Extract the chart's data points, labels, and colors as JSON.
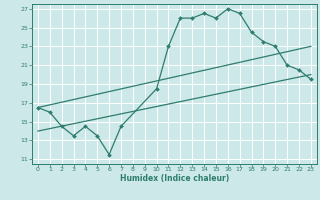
{
  "xlabel": "Humidex (Indice chaleur)",
  "background_color": "#cce8e8",
  "grid_color": "#ffffff",
  "line_color": "#2e7d6e",
  "xlim": [
    -0.5,
    23.5
  ],
  "ylim": [
    10.5,
    27.5
  ],
  "xticks": [
    0,
    1,
    2,
    3,
    4,
    5,
    6,
    7,
    8,
    9,
    10,
    11,
    12,
    13,
    14,
    15,
    16,
    17,
    18,
    19,
    20,
    21,
    22,
    23
  ],
  "yticks": [
    11,
    13,
    15,
    17,
    19,
    21,
    23,
    25,
    27
  ],
  "line1": {
    "x": [
      0,
      1,
      2,
      3,
      4,
      5,
      6,
      7,
      10,
      11,
      12,
      13,
      14,
      15,
      16,
      17,
      18,
      19,
      20,
      21,
      22,
      23
    ],
    "y": [
      16.5,
      16.0,
      14.5,
      13.5,
      14.5,
      13.5,
      11.5,
      14.5,
      18.5,
      23.0,
      26.0,
      26.0,
      26.5,
      26.0,
      27.0,
      26.5,
      24.5,
      23.5,
      23.0,
      21.0,
      20.5,
      19.5
    ]
  },
  "line2": {
    "x": [
      0,
      23
    ],
    "y": [
      16.5,
      23.0
    ]
  },
  "line3": {
    "x": [
      0,
      23
    ],
    "y": [
      14.0,
      20.0
    ]
  }
}
